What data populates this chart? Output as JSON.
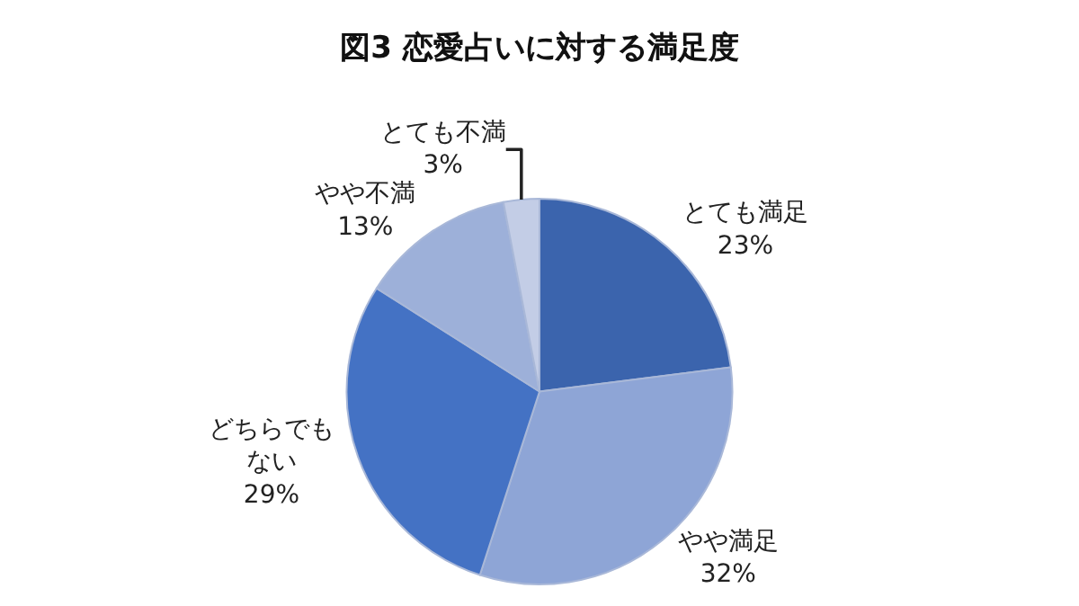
{
  "chart_data": {
    "type": "pie",
    "title": "図3 恋愛占いに対する満足度",
    "categories": [
      "とても満足",
      "やや満足",
      "どちらでもない",
      "やや不満",
      "とても不満"
    ],
    "values": [
      23,
      32,
      29,
      13,
      3
    ],
    "value_labels": [
      "23%",
      "32%",
      "29%",
      "13%",
      "3%"
    ],
    "colors": [
      "#3b64ad",
      "#8ea5d6",
      "#4472c4",
      "#9db0d9",
      "#c3cde6"
    ],
    "legend": false
  }
}
